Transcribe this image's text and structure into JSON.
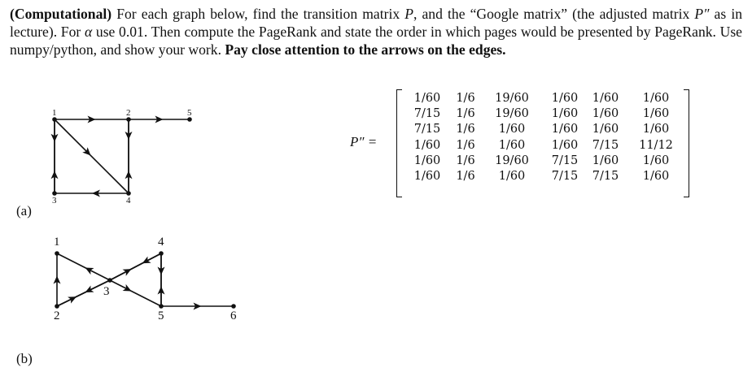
{
  "problem": {
    "lead_bold": "(Computational)",
    "text1": " For each graph below, find the transition matrix ",
    "P": "P",
    "text2": ", and the “Google matrix” (the adjusted matrix ",
    "Ppp": "P″",
    "text3": " as in lecture). For ",
    "alpha": "α",
    "text4": " use 0.01. Then compute the PageRank and state the order in which pages would be presented by PageRank. Use numpy/python, and show your work. ",
    "bold_end": "Pay close attention to the arrows on the edges."
  },
  "graph_a": {
    "label": "(a)",
    "nodes": [
      "1",
      "2",
      "3",
      "4",
      "5"
    ],
    "edges": [
      [
        "1",
        "2"
      ],
      [
        "2",
        "5"
      ],
      [
        "1",
        "3"
      ],
      [
        "3",
        "1"
      ],
      [
        "1",
        "4"
      ],
      [
        "4",
        "3"
      ],
      [
        "2",
        "4"
      ],
      [
        "4",
        "2"
      ]
    ]
  },
  "graph_b": {
    "label": "(b)",
    "nodes": [
      "1",
      "2",
      "3",
      "4",
      "5",
      "6"
    ],
    "edges": [
      [
        "2",
        "1"
      ],
      [
        "3",
        "1"
      ],
      [
        "3",
        "5"
      ],
      [
        "2",
        "3"
      ],
      [
        "3",
        "2"
      ],
      [
        "3",
        "4"
      ],
      [
        "4",
        "3"
      ],
      [
        "4",
        "5"
      ],
      [
        "5",
        "4"
      ],
      [
        "5",
        "6"
      ]
    ]
  },
  "matrix": {
    "label": "P″ =",
    "rows": [
      [
        "1/60",
        "1/6",
        "19/60",
        "1/60",
        "1/60",
        "1/60"
      ],
      [
        "7/15",
        "1/6",
        "19/60",
        "1/60",
        "1/60",
        "1/60"
      ],
      [
        "7/15",
        "1/6",
        "1/60",
        "1/60",
        "1/60",
        "1/60"
      ],
      [
        "1/60",
        "1/6",
        "1/60",
        "1/60",
        "7/15",
        "11/12"
      ],
      [
        "1/60",
        "1/6",
        "19/60",
        "7/15",
        "1/60",
        "1/60"
      ],
      [
        "1/60",
        "1/6",
        "1/60",
        "7/15",
        "7/15",
        "1/60"
      ]
    ]
  }
}
